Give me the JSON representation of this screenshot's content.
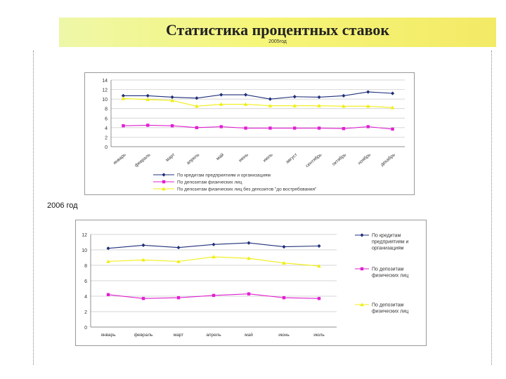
{
  "header": {
    "title": "Статистика процентных ставок",
    "subtitle": "2005год",
    "banner_colors": [
      "#eef7a8",
      "#f6f67a",
      "#f3ea66"
    ]
  },
  "section2_label": "2006 год",
  "chart_data": [
    {
      "type": "line",
      "ylim": [
        0,
        14
      ],
      "yticks": [
        0,
        2,
        4,
        6,
        8,
        10,
        12,
        14
      ],
      "categories": [
        "январь",
        "февраль",
        "март",
        "апрель",
        "май",
        "июнь",
        "июль",
        "август",
        "сентябрь",
        "октябрь",
        "ноябрь",
        "декабрь"
      ],
      "legend_position": "bottom",
      "series": [
        {
          "name": "По кредитам предприятиям и организациям",
          "color": "#1f2f7a",
          "marker": "diamond",
          "values": [
            10.7,
            10.7,
            10.4,
            10.2,
            10.9,
            10.9,
            10.0,
            10.5,
            10.4,
            10.7,
            11.5,
            11.2
          ]
        },
        {
          "name": "По депозитам физических лиц",
          "color": "#e020d0",
          "marker": "square",
          "values": [
            4.4,
            4.5,
            4.4,
            4.0,
            4.2,
            3.9,
            3.9,
            3.9,
            3.9,
            3.8,
            4.2,
            3.7
          ]
        },
        {
          "name": "По депозитам физических лиц без депозитов \"до востребования\"",
          "color": "#f0ee10",
          "marker": "triangle",
          "values": [
            10.1,
            9.9,
            9.7,
            8.5,
            8.9,
            8.9,
            8.6,
            8.6,
            8.6,
            8.5,
            8.5,
            8.2
          ]
        }
      ]
    },
    {
      "type": "line",
      "ylim": [
        0,
        12
      ],
      "yticks": [
        0,
        2,
        4,
        6,
        8,
        10,
        12
      ],
      "categories": [
        "январь",
        "февраль",
        "март",
        "апрель",
        "май",
        "июнь",
        "июль"
      ],
      "legend_position": "right",
      "series": [
        {
          "name": "По кредитам предприятиям и организациям",
          "color": "#1f2f7a",
          "marker": "diamond",
          "values": [
            10.2,
            10.6,
            10.3,
            10.7,
            10.9,
            10.4,
            10.5
          ]
        },
        {
          "name": "По депозитам физических лиц",
          "color": "#e020d0",
          "marker": "square",
          "values": [
            4.2,
            3.7,
            3.8,
            4.1,
            4.3,
            3.8,
            3.7
          ]
        },
        {
          "name": "По депозитам физических лиц",
          "color": "#f0ee10",
          "marker": "triangle",
          "values": [
            8.5,
            8.7,
            8.5,
            9.1,
            8.9,
            8.3,
            7.9
          ]
        }
      ]
    }
  ]
}
